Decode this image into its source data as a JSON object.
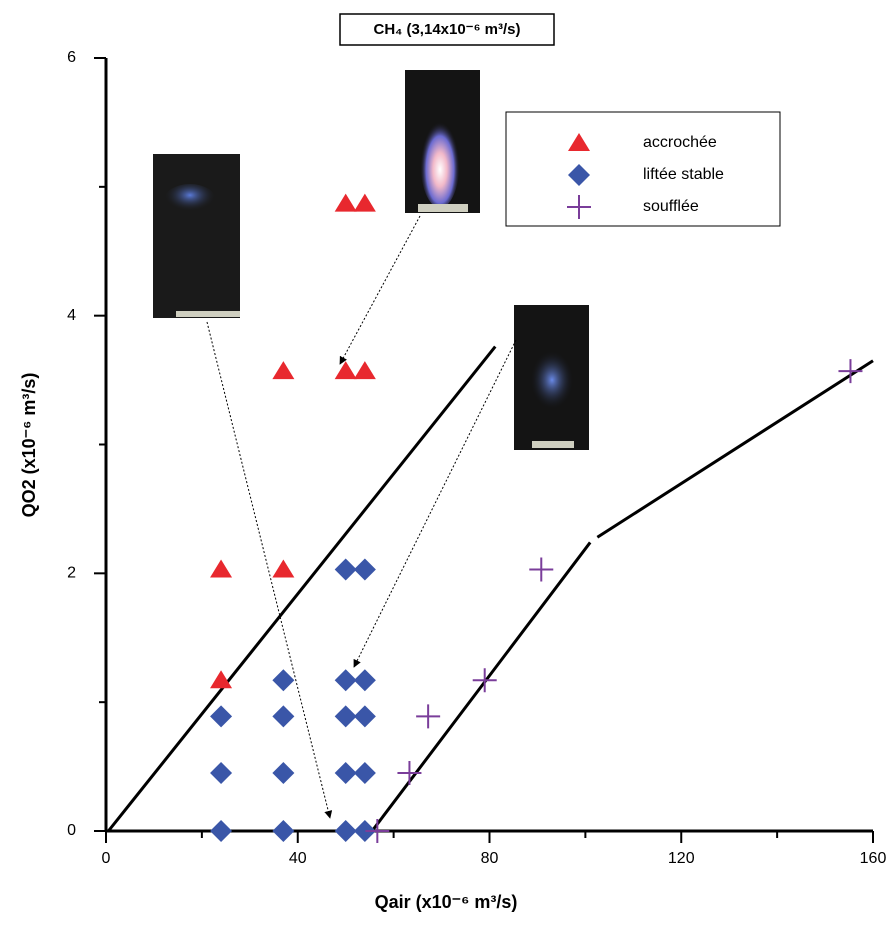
{
  "chart_data": {
    "type": "scatter",
    "title": "CH₄ (3,14x10⁻⁶ m³/s)",
    "xlabel": "Qair (x10⁻⁶ m³/s)",
    "ylabel": "QO2 (x10⁻⁶ m³/s)",
    "xlim": [
      0,
      160
    ],
    "ylim": [
      0,
      6
    ],
    "xticks": [
      0,
      40,
      80,
      120,
      160
    ],
    "yticks": [
      0,
      2,
      4,
      6
    ],
    "xminorticks": [
      20,
      60,
      100,
      140
    ],
    "yminorticks": [
      1,
      3,
      5
    ],
    "series": [
      {
        "name": "accrochée",
        "color": "#e8282e",
        "marker": "triangle",
        "x": [
          24,
          24,
          37,
          37,
          50,
          54,
          50,
          54
        ],
        "values": [
          1.17,
          2.03,
          2.03,
          3.57,
          3.57,
          3.57,
          4.87,
          4.87
        ]
      },
      {
        "name": "liftée stable",
        "color": "#3a56a8",
        "marker": "diamond",
        "x": [
          24,
          24,
          24,
          37,
          37,
          37,
          37,
          50,
          50,
          50,
          50,
          50,
          54,
          54,
          54,
          54,
          54
        ],
        "values": [
          0,
          0.45,
          0.89,
          0,
          0.45,
          0.89,
          1.17,
          0,
          0.45,
          0.89,
          1.17,
          2.03,
          0,
          0.45,
          0.89,
          1.17,
          2.03
        ]
      },
      {
        "name": "soufflée",
        "color": "#7a3d9a",
        "marker": "plus",
        "x": [
          56.6,
          63.3,
          67.2,
          79,
          90.8,
          155.3
        ],
        "values": [
          0,
          0.45,
          0.89,
          1.17,
          2.03,
          3.57
        ]
      }
    ],
    "lines": [
      {
        "color": "#000000",
        "x": [
          0.5,
          81.2
        ],
        "values": [
          0,
          3.76
        ]
      },
      {
        "color": "#000000",
        "x": [
          55.5,
          101,
          null,
          102.5,
          160
        ],
        "values": [
          0,
          2.24,
          null,
          2.28,
          3.65
        ]
      }
    ]
  }
}
